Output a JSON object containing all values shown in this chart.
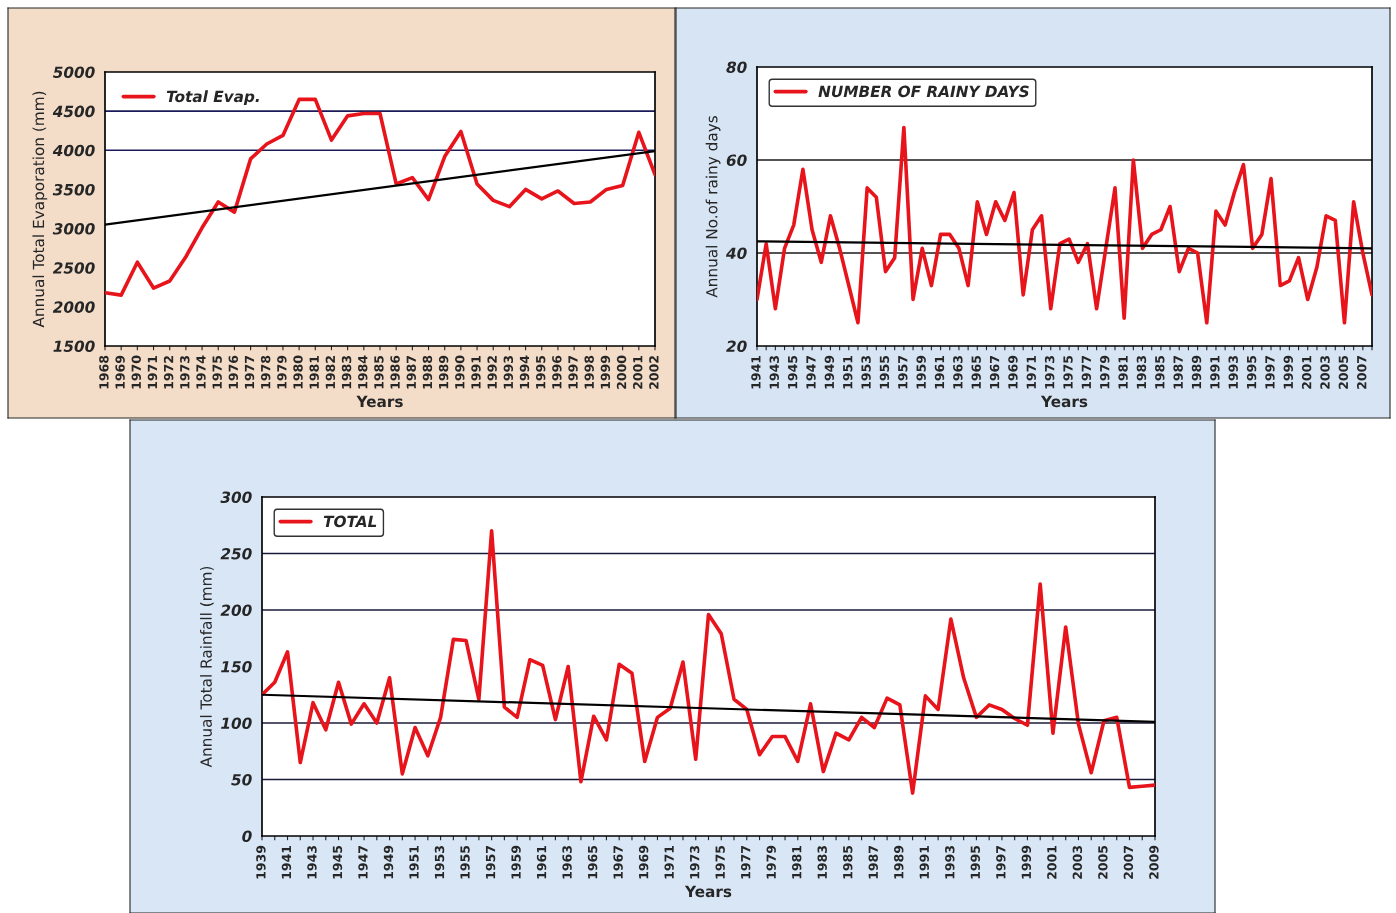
{
  "chart_data": [
    {
      "type": "line",
      "xlabel": "Years",
      "ylabel": "Annual Total Evaporation (mm)",
      "categories": [
        "1968",
        "1969",
        "1970",
        "1971",
        "1972",
        "1973",
        "1974",
        "1975",
        "1976",
        "1977",
        "1978",
        "1979",
        "1980",
        "1981",
        "1982",
        "1983",
        "1984",
        "1985",
        "1986",
        "1987",
        "1988",
        "1989",
        "1990",
        "1991",
        "1992",
        "1993",
        "1994",
        "1995",
        "1996",
        "1997",
        "1998",
        "1999",
        "2000",
        "2001",
        "2002"
      ],
      "series": [
        {
          "name": "Total Evap.",
          "color": "#e8141c",
          "values": [
            2180,
            2150,
            2570,
            2240,
            2330,
            2640,
            3010,
            3340,
            3210,
            3890,
            4080,
            4190,
            4650,
            4650,
            4130,
            4440,
            4470,
            4470,
            3570,
            3650,
            3370,
            3920,
            4240,
            3570,
            3360,
            3280,
            3500,
            3380,
            3480,
            3320,
            3340,
            3500,
            3550,
            4230,
            3690
          ]
        },
        {
          "type": "line",
          "color": "#000000",
          "values": [
            3050,
            null,
            null,
            null,
            null,
            null,
            null,
            null,
            null,
            null,
            null,
            null,
            null,
            null,
            null,
            null,
            null,
            null,
            null,
            null,
            null,
            null,
            null,
            null,
            null,
            null,
            null,
            null,
            null,
            null,
            null,
            null,
            null,
            null,
            3990
          ]
        }
      ],
      "ylim": [
        1500,
        5000
      ],
      "yticks": [
        1500,
        2000,
        2500,
        3000,
        3500,
        4000,
        4500,
        5000
      ],
      "ref_lines": [
        {
          "axis": "y",
          "value": 4500,
          "color": "#1a1a5a"
        },
        {
          "axis": "y",
          "value": 4000,
          "color": "#1a1a5a"
        }
      ],
      "legend": "top left",
      "grid": false,
      "marker": "none"
    },
    {
      "type": "line",
      "xlabel": "Years",
      "ylabel": "Annual No.of rainy days",
      "categories": [
        "1941",
        null,
        "1943",
        null,
        "1945",
        null,
        "1947",
        null,
        "1949",
        null,
        "1951",
        null,
        "1953",
        null,
        "1955",
        null,
        "1957",
        null,
        "1959",
        null,
        "1961",
        null,
        "1963",
        null,
        "1965",
        null,
        "1967",
        null,
        "1969",
        null,
        "1971",
        null,
        "1973",
        null,
        "1975",
        null,
        "1977",
        null,
        "1979",
        null,
        "1981",
        null,
        "1983",
        null,
        "1985",
        null,
        "1987",
        null,
        "1989",
        null,
        "1991",
        null,
        "1993",
        null,
        "1995",
        null,
        "1997",
        null,
        "1999",
        null,
        "2001",
        null,
        "2003",
        null,
        "2005",
        null,
        "2007",
        null
      ],
      "series": [
        {
          "name": "NUMBER OF RAINY DAYS",
          "color": "#e8141c",
          "values": [
            30,
            42,
            28,
            41,
            46,
            58,
            45,
            38,
            48,
            41,
            33,
            25,
            54,
            52,
            36,
            39,
            67,
            30,
            41,
            33,
            44,
            44,
            41,
            33,
            51,
            44,
            51,
            47,
            53,
            31,
            45,
            48,
            28,
            42,
            43,
            38,
            42,
            28,
            41,
            54,
            26,
            60,
            41,
            44,
            45,
            50,
            36,
            41,
            40,
            25,
            49,
            46,
            53,
            59,
            41,
            44,
            56,
            33,
            34,
            39,
            30,
            37,
            48,
            47,
            25,
            51,
            40,
            31
          ]
        },
        {
          "type": "line",
          "color": "#000000",
          "values": [
            42.5,
            null,
            null,
            null,
            null,
            null,
            null,
            null,
            null,
            null,
            null,
            null,
            null,
            null,
            null,
            null,
            null,
            null,
            null,
            null,
            null,
            null,
            null,
            null,
            null,
            null,
            null,
            null,
            null,
            null,
            null,
            null,
            null,
            null,
            null,
            null,
            null,
            null,
            null,
            null,
            null,
            null,
            null,
            null,
            null,
            null,
            null,
            null,
            null,
            null,
            null,
            null,
            null,
            null,
            null,
            null,
            null,
            null,
            null,
            null,
            null,
            null,
            null,
            null,
            null,
            null,
            null,
            41
          ]
        }
      ],
      "ylim": [
        20,
        80
      ],
      "yticks": [
        20,
        40,
        60,
        80
      ],
      "ref_lines": [
        {
          "axis": "y",
          "value": 60,
          "color": "#1a1a1a"
        },
        {
          "axis": "y",
          "value": 40,
          "color": "#1a1a1a"
        }
      ],
      "legend": "top left",
      "grid": false,
      "marker": "none"
    },
    {
      "type": "line",
      "xlabel": "Years",
      "ylabel": "Annual Total Rainfall (mm)",
      "categories": [
        "1939",
        null,
        "1941",
        null,
        "1943",
        null,
        "1945",
        null,
        "1947",
        null,
        "1949",
        null,
        "1951",
        null,
        "1953",
        null,
        "1955",
        null,
        "1957",
        null,
        "1959",
        null,
        "1961",
        null,
        "1963",
        null,
        "1965",
        null,
        "1967",
        null,
        "1969",
        null,
        "1971",
        null,
        "1973",
        null,
        "1975",
        null,
        "1977",
        null,
        "1979",
        null,
        "1981",
        null,
        "1983",
        null,
        "1985",
        null,
        "1987",
        null,
        "1989",
        null,
        "1991",
        null,
        "1993",
        null,
        "1995",
        null,
        "1997",
        null,
        "1999",
        null,
        "2001",
        null,
        "2003",
        null,
        "2005",
        null,
        "2007",
        null,
        "2009"
      ],
      "series": [
        {
          "name": "TOTAL",
          "color": "#e8141c",
          "values": [
            125,
            136,
            163,
            65,
            118,
            94,
            136,
            99,
            117,
            100,
            140,
            55,
            96,
            71,
            105,
            174,
            173,
            121,
            270,
            114,
            105,
            156,
            151,
            103,
            150,
            48,
            106,
            85,
            152,
            144,
            66,
            105,
            113,
            154,
            68,
            196,
            179,
            121,
            112,
            72,
            88,
            88,
            66,
            117,
            57,
            91,
            85,
            105,
            96,
            122,
            116,
            38,
            124,
            112,
            192,
            140,
            105,
            116,
            112,
            104,
            98,
            223,
            91,
            185,
            99,
            56,
            102,
            105,
            43,
            44,
            45
          ]
        },
        {
          "type": "line",
          "color": "#000000",
          "values": [
            125,
            null,
            null,
            null,
            null,
            null,
            null,
            null,
            null,
            null,
            null,
            null,
            null,
            null,
            null,
            null,
            null,
            null,
            null,
            null,
            null,
            null,
            null,
            null,
            null,
            null,
            null,
            null,
            null,
            null,
            null,
            null,
            null,
            null,
            null,
            null,
            null,
            null,
            null,
            null,
            null,
            null,
            null,
            null,
            null,
            null,
            null,
            null,
            null,
            null,
            null,
            null,
            null,
            null,
            null,
            null,
            null,
            null,
            null,
            null,
            null,
            null,
            null,
            null,
            null,
            null,
            null,
            null,
            null,
            null,
            101
          ]
        }
      ],
      "ylim": [
        0,
        300
      ],
      "yticks": [
        0,
        50,
        100,
        150,
        200,
        250,
        300
      ],
      "ref_lines": [
        {
          "axis": "y",
          "value": 250,
          "color": "#1a1a3a"
        },
        {
          "axis": "y",
          "value": 200,
          "color": "#1a1a3a"
        },
        {
          "axis": "y",
          "value": 100,
          "color": "#1a1a3a"
        },
        {
          "axis": "y",
          "value": 50,
          "color": "#1a1a3a"
        }
      ],
      "legend": "top left",
      "grid": false,
      "marker": "none"
    }
  ]
}
